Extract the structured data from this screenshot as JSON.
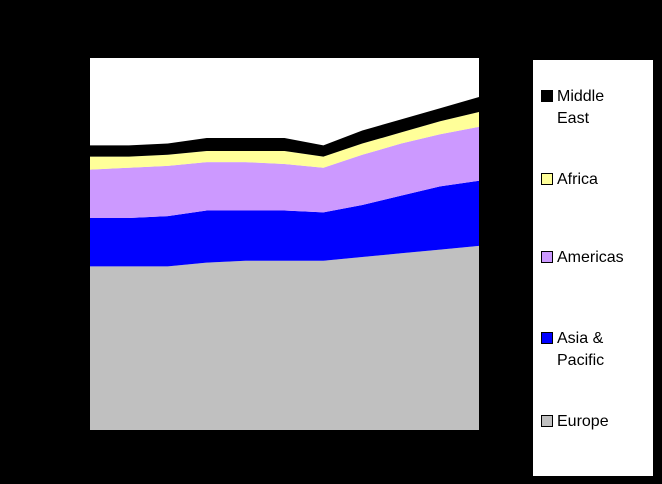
{
  "chart_data": {
    "type": "area",
    "stacked": true,
    "title": "",
    "xlabel": "",
    "ylabel": "",
    "x": [
      1,
      2,
      3,
      4,
      5,
      6,
      7,
      8,
      9,
      10,
      11
    ],
    "ylim": [
      0,
      100
    ],
    "grid": false,
    "legend_position": "right",
    "series": [
      {
        "name": "Europe",
        "color": "#c0c0c0",
        "values": [
          44,
          44,
          44,
          45,
          45.5,
          45.5,
          45.5,
          46.5,
          47.5,
          48.5,
          49.5
        ]
      },
      {
        "name": "Asia & Pacific",
        "color": "#0000ff",
        "values": [
          13,
          13,
          13.5,
          14,
          13.5,
          13.5,
          13,
          14,
          15.5,
          17,
          17.5
        ]
      },
      {
        "name": "Americas",
        "color": "#cc99ff",
        "values": [
          13,
          13.5,
          13.5,
          13,
          13,
          12.5,
          12,
          13.5,
          14,
          14,
          14.5
        ]
      },
      {
        "name": "Africa",
        "color": "#ffff99",
        "values": [
          3.5,
          3,
          3,
          3,
          3,
          3.5,
          3,
          3,
          3,
          3.5,
          4
        ]
      },
      {
        "name": "Middle East",
        "color": "#000000",
        "values": [
          3,
          3,
          3,
          3.5,
          3.5,
          3.5,
          3,
          3.5,
          3.5,
          3.5,
          4
        ]
      }
    ]
  }
}
